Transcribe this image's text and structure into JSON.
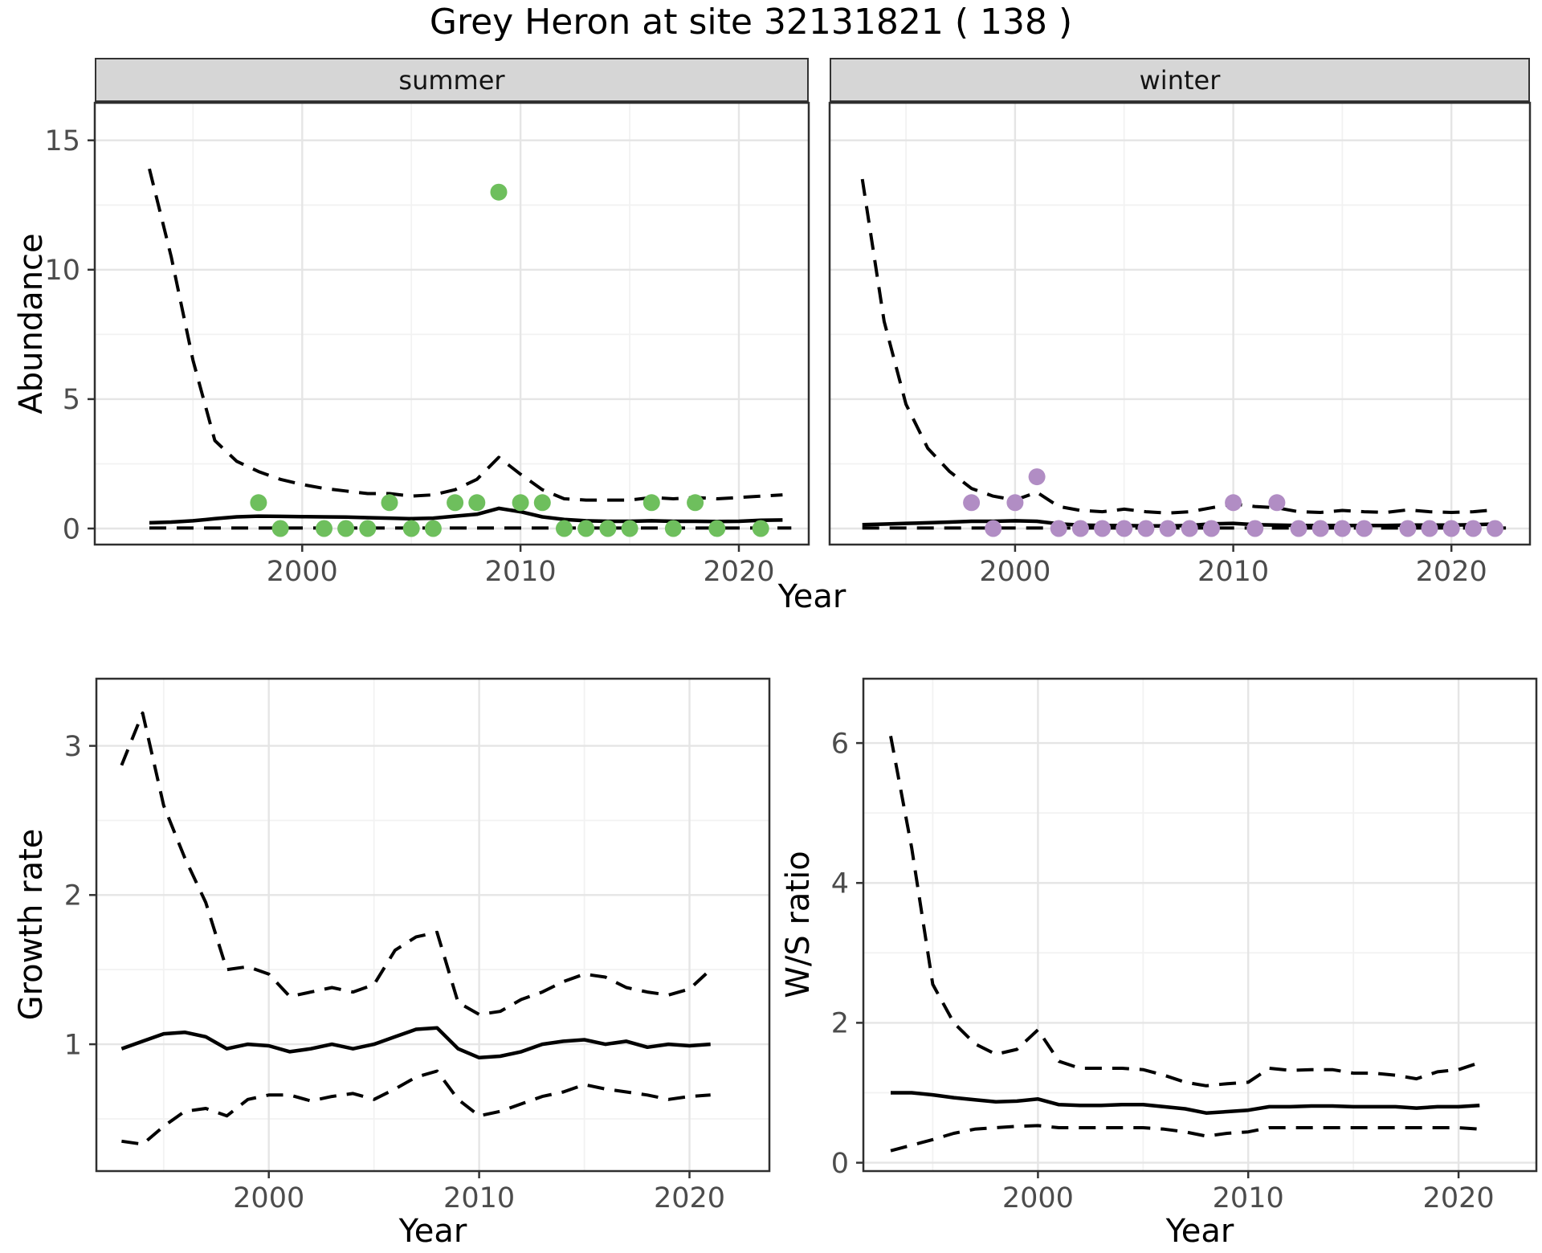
{
  "title": "Grey Heron at site 32131821 ( 138 )",
  "facets": {
    "summer": "summer",
    "winter": "winter"
  },
  "axis_titles": {
    "abundance": "Abundance",
    "year_top": "Year",
    "growth_rate": "Growth rate",
    "ws_ratio": "W/S ratio",
    "year_bottom_left": "Year",
    "year_bottom_right": "Year"
  },
  "colors": {
    "summer_point": "#6ebf5d",
    "winter_point": "#b18dc4",
    "line": "#000000",
    "strip_bg": "#d6d6d6",
    "strip_border": "#333333",
    "panel_border": "#2f2f2f",
    "grid_major": "#e5e5e5",
    "grid_minor": "#f2f2f2",
    "tick_mark": "#333333",
    "tick_text": "#4c4c4c",
    "text": "#000000"
  },
  "chart_data": [
    {
      "id": "abundance-summer",
      "type": "line+scatter",
      "facet_label": "summer",
      "xlabel": "Year",
      "ylabel": "Abundance",
      "xlim": [
        1990.5,
        2023.2
      ],
      "ylim": [
        -0.62,
        16.45
      ],
      "xticks": [
        2000,
        2010,
        2020
      ],
      "xminor": [
        1995,
        2005,
        2015
      ],
      "yticks": [
        0,
        5,
        10,
        15
      ],
      "yminor": [
        2.5,
        7.5,
        12.5
      ],
      "series": [
        {
          "name": "upper_ci",
          "style": "dashed",
          "x": [
            1993,
            1994,
            1995,
            1996,
            1997,
            1998,
            1999,
            2000,
            2001,
            2002,
            2003,
            2004,
            2005,
            2006,
            2007,
            2008,
            2009,
            2010,
            2011,
            2012,
            2013,
            2014,
            2015,
            2016,
            2017,
            2018,
            2019,
            2020,
            2021,
            2022
          ],
          "y": [
            13.9,
            10.5,
            6.5,
            3.4,
            2.6,
            2.2,
            1.9,
            1.7,
            1.55,
            1.45,
            1.35,
            1.35,
            1.25,
            1.3,
            1.5,
            1.9,
            2.75,
            2.1,
            1.5,
            1.15,
            1.1,
            1.1,
            1.1,
            1.2,
            1.15,
            1.2,
            1.15,
            1.2,
            1.25,
            1.3
          ]
        },
        {
          "name": "lower_ci",
          "style": "dashed",
          "x": [
            1993,
            2022.4
          ],
          "y": [
            0.02,
            0.02
          ]
        },
        {
          "name": "median",
          "style": "solid",
          "x": [
            1993,
            1994,
            1995,
            1996,
            1997,
            1998,
            1999,
            2000,
            2001,
            2002,
            2003,
            2004,
            2005,
            2006,
            2007,
            2008,
            2009,
            2010,
            2011,
            2012,
            2013,
            2014,
            2015,
            2016,
            2017,
            2018,
            2019,
            2020,
            2021,
            2022
          ],
          "y": [
            0.22,
            0.25,
            0.3,
            0.38,
            0.45,
            0.48,
            0.47,
            0.46,
            0.45,
            0.44,
            0.42,
            0.4,
            0.38,
            0.4,
            0.48,
            0.55,
            0.78,
            0.65,
            0.45,
            0.35,
            0.3,
            0.28,
            0.28,
            0.3,
            0.28,
            0.28,
            0.27,
            0.28,
            0.32,
            0.33
          ]
        }
      ],
      "points": {
        "name": "observed-counts",
        "color_key": "summer_point",
        "x": [
          1998,
          1999,
          2001,
          2002,
          2003,
          2004,
          2005,
          2006,
          2007,
          2008,
          2009,
          2010,
          2011,
          2012,
          2013,
          2014,
          2015,
          2016,
          2017,
          2018,
          2019,
          2021
        ],
        "y": [
          1,
          0,
          0,
          0,
          0,
          1,
          0,
          0,
          1,
          1,
          13,
          1,
          1,
          0,
          0,
          0,
          0,
          1,
          0,
          1,
          0,
          0
        ]
      }
    },
    {
      "id": "abundance-winter",
      "type": "line+scatter",
      "facet_label": "winter",
      "xlabel": "Year",
      "ylabel": "Abundance",
      "xlim": [
        1991.5,
        2023.6
      ],
      "ylim": [
        -0.62,
        16.45
      ],
      "xticks": [
        2000,
        2010,
        2020
      ],
      "xminor": [
        1995,
        2005,
        2015
      ],
      "yticks": [
        0,
        5,
        10,
        15
      ],
      "yminor": [
        2.5,
        7.5,
        12.5
      ],
      "series": [
        {
          "name": "upper_ci",
          "style": "dashed",
          "x": [
            1993,
            1994,
            1995,
            1996,
            1997,
            1998,
            1999,
            2000,
            2001,
            2002,
            2003,
            2004,
            2005,
            2006,
            2007,
            2008,
            2009,
            2010,
            2011,
            2012,
            2013,
            2014,
            2015,
            2016,
            2017,
            2018,
            2019,
            2020,
            2021,
            2022
          ],
          "y": [
            13.5,
            8.0,
            4.8,
            3.1,
            2.2,
            1.55,
            1.25,
            1.1,
            1.4,
            0.85,
            0.7,
            0.65,
            0.75,
            0.65,
            0.6,
            0.65,
            0.8,
            0.95,
            0.85,
            0.8,
            0.65,
            0.62,
            0.7,
            0.65,
            0.62,
            0.72,
            0.65,
            0.62,
            0.65,
            0.72
          ]
        },
        {
          "name": "lower_ci",
          "style": "dashed",
          "x": [
            1993,
            2022.5
          ],
          "y": [
            0.02,
            0.02
          ]
        },
        {
          "name": "median",
          "style": "solid",
          "x": [
            1993,
            1994,
            1995,
            1996,
            1997,
            1998,
            1999,
            2000,
            2001,
            2002,
            2003,
            2004,
            2005,
            2006,
            2007,
            2008,
            2009,
            2010,
            2011,
            2012,
            2013,
            2014,
            2015,
            2016,
            2017,
            2018,
            2019,
            2020,
            2021,
            2022
          ],
          "y": [
            0.15,
            0.17,
            0.2,
            0.22,
            0.25,
            0.28,
            0.28,
            0.3,
            0.28,
            0.18,
            0.13,
            0.12,
            0.12,
            0.1,
            0.1,
            0.12,
            0.18,
            0.2,
            0.15,
            0.13,
            0.12,
            0.12,
            0.12,
            0.12,
            0.12,
            0.13,
            0.13,
            0.13,
            0.15,
            0.17
          ]
        }
      ],
      "points": {
        "name": "observed-counts",
        "color_key": "winter_point",
        "x": [
          1998,
          1999,
          2000,
          2001,
          2002,
          2003,
          2004,
          2005,
          2006,
          2007,
          2008,
          2009,
          2010,
          2011,
          2012,
          2013,
          2014,
          2015,
          2016,
          2018,
          2019,
          2020,
          2021,
          2022
        ],
        "y": [
          1,
          0,
          1,
          2,
          0,
          0,
          0,
          0,
          0,
          0,
          0,
          0,
          1,
          0,
          1,
          0,
          0,
          0,
          0,
          0,
          0,
          0,
          0,
          0
        ]
      }
    },
    {
      "id": "growth-rate",
      "type": "line",
      "xlabel": "Year",
      "ylabel": "Growth rate",
      "xlim": [
        1991.8,
        2023.8
      ],
      "ylim": [
        0.15,
        3.45
      ],
      "xticks": [
        2000,
        2010,
        2020
      ],
      "xminor": [
        1995,
        2005,
        2015
      ],
      "yticks": [
        1,
        2,
        3
      ],
      "yminor": [
        0.5,
        1.5,
        2.5
      ],
      "series": [
        {
          "name": "upper_ci",
          "style": "dashed",
          "x": [
            1993,
            1994,
            1995,
            1996,
            1997,
            1998,
            1999,
            2000,
            2001,
            2002,
            2003,
            2004,
            2005,
            2006,
            2007,
            2008,
            2009,
            2010,
            2011,
            2012,
            2013,
            2014,
            2015,
            2016,
            2017,
            2018,
            2019,
            2020,
            2021
          ],
          "y": [
            2.87,
            3.22,
            2.6,
            2.25,
            1.95,
            1.5,
            1.52,
            1.47,
            1.32,
            1.35,
            1.38,
            1.35,
            1.4,
            1.63,
            1.72,
            1.75,
            1.28,
            1.2,
            1.22,
            1.3,
            1.35,
            1.42,
            1.47,
            1.45,
            1.38,
            1.35,
            1.33,
            1.37,
            1.5
          ]
        },
        {
          "name": "lower_ci",
          "style": "dashed",
          "x": [
            1993,
            1994,
            1995,
            1996,
            1997,
            1998,
            1999,
            2000,
            2001,
            2002,
            2003,
            2004,
            2005,
            2006,
            2007,
            2008,
            2009,
            2010,
            2011,
            2012,
            2013,
            2014,
            2015,
            2016,
            2017,
            2018,
            2019,
            2020,
            2021
          ],
          "y": [
            0.35,
            0.33,
            0.45,
            0.55,
            0.57,
            0.52,
            0.63,
            0.66,
            0.66,
            0.62,
            0.65,
            0.67,
            0.63,
            0.7,
            0.78,
            0.82,
            0.63,
            0.52,
            0.55,
            0.6,
            0.65,
            0.68,
            0.73,
            0.7,
            0.68,
            0.66,
            0.63,
            0.65,
            0.66
          ]
        },
        {
          "name": "median",
          "style": "solid",
          "x": [
            1993,
            1994,
            1995,
            1996,
            1997,
            1998,
            1999,
            2000,
            2001,
            2002,
            2003,
            2004,
            2005,
            2006,
            2007,
            2008,
            2009,
            2010,
            2011,
            2012,
            2013,
            2014,
            2015,
            2016,
            2017,
            2018,
            2019,
            2020,
            2021
          ],
          "y": [
            0.97,
            1.02,
            1.07,
            1.08,
            1.05,
            0.97,
            1.0,
            0.99,
            0.95,
            0.97,
            1.0,
            0.97,
            1.0,
            1.05,
            1.1,
            1.11,
            0.97,
            0.91,
            0.92,
            0.95,
            1.0,
            1.02,
            1.03,
            1.0,
            1.02,
            0.98,
            1.0,
            0.99,
            1.0
          ]
        }
      ]
    },
    {
      "id": "ws-ratio",
      "type": "line",
      "xlabel": "Year",
      "ylabel": "W/S ratio",
      "xlim": [
        1991.7,
        2023.7
      ],
      "ylim": [
        -0.12,
        6.92
      ],
      "xticks": [
        2000,
        2010,
        2020
      ],
      "xminor": [
        1995,
        2005,
        2015
      ],
      "yticks": [
        0,
        2,
        4,
        6
      ],
      "yminor": [
        1,
        3,
        5
      ],
      "series": [
        {
          "name": "upper_ci",
          "style": "dashed",
          "x": [
            1993,
            1994,
            1995,
            1996,
            1997,
            1998,
            1999,
            2000,
            2001,
            2002,
            2003,
            2004,
            2005,
            2006,
            2007,
            2008,
            2009,
            2010,
            2011,
            2012,
            2013,
            2014,
            2015,
            2016,
            2017,
            2018,
            2019,
            2020,
            2021
          ],
          "y": [
            6.1,
            4.5,
            2.55,
            2.0,
            1.7,
            1.55,
            1.62,
            1.9,
            1.45,
            1.35,
            1.35,
            1.35,
            1.33,
            1.25,
            1.15,
            1.1,
            1.13,
            1.15,
            1.35,
            1.32,
            1.33,
            1.33,
            1.28,
            1.28,
            1.25,
            1.2,
            1.3,
            1.33,
            1.43
          ]
        },
        {
          "name": "lower_ci",
          "style": "dashed",
          "x": [
            1993,
            1994,
            1995,
            1996,
            1997,
            1998,
            1999,
            2000,
            2001,
            2002,
            2003,
            2004,
            2005,
            2006,
            2007,
            2008,
            2009,
            2010,
            2011,
            2012,
            2013,
            2014,
            2015,
            2016,
            2017,
            2018,
            2019,
            2020,
            2021
          ],
          "y": [
            0.17,
            0.25,
            0.33,
            0.42,
            0.48,
            0.5,
            0.52,
            0.53,
            0.5,
            0.5,
            0.5,
            0.5,
            0.5,
            0.48,
            0.44,
            0.38,
            0.42,
            0.44,
            0.5,
            0.5,
            0.5,
            0.5,
            0.5,
            0.5,
            0.5,
            0.5,
            0.5,
            0.5,
            0.48
          ]
        },
        {
          "name": "median",
          "style": "solid",
          "x": [
            1993,
            1994,
            1995,
            1996,
            1997,
            1998,
            1999,
            2000,
            2001,
            2002,
            2003,
            2004,
            2005,
            2006,
            2007,
            2008,
            2009,
            2010,
            2011,
            2012,
            2013,
            2014,
            2015,
            2016,
            2017,
            2018,
            2019,
            2020,
            2021
          ],
          "y": [
            1.0,
            1.0,
            0.97,
            0.93,
            0.9,
            0.87,
            0.88,
            0.91,
            0.83,
            0.82,
            0.82,
            0.83,
            0.83,
            0.8,
            0.77,
            0.71,
            0.73,
            0.75,
            0.8,
            0.8,
            0.81,
            0.81,
            0.8,
            0.8,
            0.8,
            0.78,
            0.8,
            0.8,
            0.82
          ]
        }
      ]
    }
  ]
}
